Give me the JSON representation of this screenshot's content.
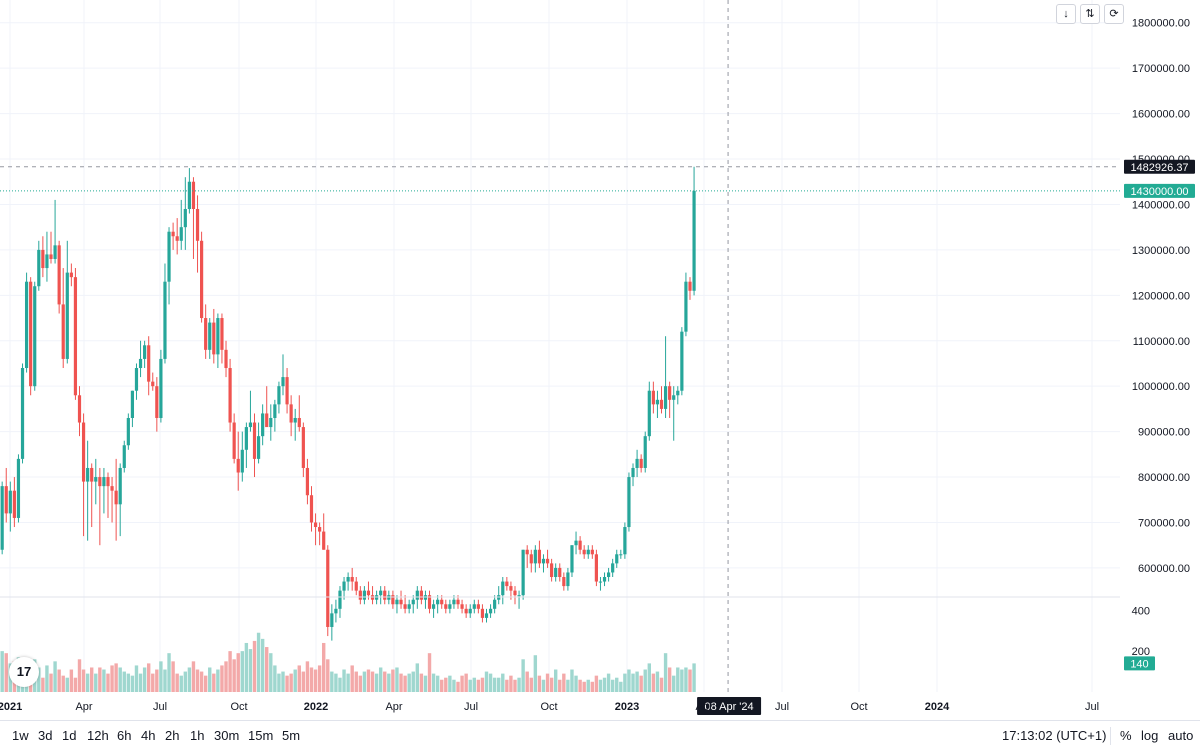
{
  "toolbar": {
    "timeframes": [
      "1w",
      "3d",
      "1d",
      "12h",
      "6h",
      "4h",
      "2h",
      "1h",
      "30m",
      "15m",
      "5m"
    ],
    "clock": "17:13:02 (UTC+1)",
    "percent_label": "%",
    "log_label": "log",
    "auto_label": "auto"
  },
  "controls": {
    "down_icon": "arrow-down-icon",
    "collapse_icon": "collapse-icon",
    "reset_icon": "reset-scale-icon"
  },
  "logo": {
    "text": "17"
  },
  "crosshair": {
    "price_label": "1482926.37",
    "date_label": "08 Apr '24"
  },
  "colors": {
    "up": "#26a69a",
    "down": "#ef5350",
    "up_vol": "#9fd7cf",
    "down_vol": "#f3a9a9",
    "grid": "#f0f3fa",
    "crosshair": "#9598a1",
    "last_price": "#22ab94",
    "label_dark": "#131722"
  },
  "chart_data": {
    "type": "candlestick",
    "timeframe": "1w",
    "price_axis": {
      "ticks": [
        "600000.00",
        "700000.00",
        "800000.00",
        "900000.00",
        "1000000.00",
        "1100000.00",
        "1200000.00",
        "1300000.00",
        "1400000.00",
        "1500000.00",
        "1600000.00",
        "1700000.00",
        "1800000.00"
      ],
      "last_price_label": "1430000.00",
      "range": [
        536000,
        1850000
      ]
    },
    "volume_axis": {
      "ticks": [
        "200",
        "400"
      ],
      "last_volume_label": "140",
      "range": [
        0,
        460
      ]
    },
    "time_axis": [
      "2021",
      "Apr",
      "Jul",
      "Oct",
      "2022",
      "Apr",
      "Jul",
      "Oct",
      "2023",
      "Apr",
      "Jul",
      "Oct",
      "2024",
      "Jul"
    ],
    "candles": [
      [
        590000,
        650000,
        560000,
        640000,
        80
      ],
      [
        640000,
        790000,
        630000,
        780000,
        200
      ],
      [
        780000,
        820000,
        700000,
        720000,
        190
      ],
      [
        720000,
        790000,
        680000,
        770000,
        140
      ],
      [
        770000,
        800000,
        690000,
        710000,
        150
      ],
      [
        710000,
        850000,
        700000,
        840000,
        170
      ],
      [
        840000,
        1050000,
        830000,
        1040000,
        110
      ],
      [
        1040000,
        1250000,
        1030000,
        1230000,
        90
      ],
      [
        1230000,
        1240000,
        980000,
        1000000,
        100
      ],
      [
        1000000,
        1230000,
        990000,
        1220000,
        160
      ],
      [
        1220000,
        1320000,
        1210000,
        1300000,
        120
      ],
      [
        1300000,
        1330000,
        1240000,
        1260000,
        70
      ],
      [
        1260000,
        1340000,
        1230000,
        1290000,
        130
      ],
      [
        1290000,
        1340000,
        1270000,
        1280000,
        90
      ],
      [
        1280000,
        1410000,
        1270000,
        1310000,
        150
      ],
      [
        1310000,
        1320000,
        1160000,
        1180000,
        110
      ],
      [
        1180000,
        1260000,
        1040000,
        1060000,
        80
      ],
      [
        1060000,
        1320000,
        1050000,
        1250000,
        70
      ],
      [
        1250000,
        1270000,
        1220000,
        1240000,
        110
      ],
      [
        1240000,
        1260000,
        970000,
        980000,
        70
      ],
      [
        980000,
        1000000,
        890000,
        920000,
        160
      ],
      [
        920000,
        940000,
        670000,
        790000,
        110
      ],
      [
        790000,
        880000,
        660000,
        820000,
        90
      ],
      [
        820000,
        830000,
        690000,
        790000,
        120
      ],
      [
        790000,
        840000,
        740000,
        800000,
        90
      ],
      [
        800000,
        820000,
        650000,
        780000,
        120
      ],
      [
        780000,
        820000,
        720000,
        800000,
        110
      ],
      [
        800000,
        810000,
        710000,
        780000,
        90
      ],
      [
        780000,
        800000,
        700000,
        770000,
        130
      ],
      [
        770000,
        840000,
        660000,
        740000,
        140
      ],
      [
        740000,
        830000,
        670000,
        820000,
        120
      ],
      [
        820000,
        880000,
        810000,
        870000,
        100
      ],
      [
        870000,
        940000,
        860000,
        930000,
        90
      ],
      [
        930000,
        990000,
        910000,
        990000,
        80
      ],
      [
        990000,
        1050000,
        970000,
        1040000,
        130
      ],
      [
        1040000,
        1100000,
        1020000,
        1060000,
        90
      ],
      [
        1060000,
        1100000,
        1040000,
        1090000,
        120
      ],
      [
        1090000,
        1110000,
        980000,
        1010000,
        140
      ],
      [
        1010000,
        1030000,
        990000,
        1000000,
        90
      ],
      [
        1000000,
        1020000,
        900000,
        930000,
        110
      ],
      [
        930000,
        1080000,
        920000,
        1060000,
        150
      ],
      [
        1060000,
        1270000,
        1050000,
        1230000,
        110
      ],
      [
        1230000,
        1350000,
        1180000,
        1340000,
        190
      ],
      [
        1340000,
        1360000,
        1300000,
        1330000,
        150
      ],
      [
        1330000,
        1370000,
        1290000,
        1320000,
        90
      ],
      [
        1320000,
        1410000,
        1300000,
        1350000,
        80
      ],
      [
        1350000,
        1460000,
        1300000,
        1390000,
        100
      ],
      [
        1390000,
        1480000,
        1380000,
        1450000,
        120
      ],
      [
        1450000,
        1460000,
        1280000,
        1390000,
        150
      ],
      [
        1390000,
        1420000,
        1250000,
        1320000,
        110
      ],
      [
        1320000,
        1340000,
        1140000,
        1150000,
        100
      ],
      [
        1150000,
        1180000,
        1060000,
        1080000,
        80
      ],
      [
        1080000,
        1150000,
        1060000,
        1140000,
        120
      ],
      [
        1140000,
        1170000,
        1050000,
        1070000,
        90
      ],
      [
        1070000,
        1160000,
        1040000,
        1150000,
        110
      ],
      [
        1150000,
        1160000,
        1050000,
        1080000,
        130
      ],
      [
        1080000,
        1100000,
        1020000,
        1040000,
        150
      ],
      [
        1040000,
        1060000,
        900000,
        920000,
        200
      ],
      [
        920000,
        940000,
        830000,
        840000,
        160
      ],
      [
        840000,
        900000,
        770000,
        810000,
        190
      ],
      [
        810000,
        900000,
        790000,
        860000,
        200
      ],
      [
        860000,
        920000,
        820000,
        910000,
        240
      ],
      [
        910000,
        990000,
        900000,
        920000,
        210
      ],
      [
        920000,
        940000,
        800000,
        840000,
        250
      ],
      [
        840000,
        920000,
        830000,
        890000,
        290
      ],
      [
        890000,
        960000,
        870000,
        940000,
        260
      ],
      [
        940000,
        1000000,
        920000,
        910000,
        220
      ],
      [
        910000,
        960000,
        880000,
        930000,
        190
      ],
      [
        930000,
        970000,
        900000,
        960000,
        130
      ],
      [
        960000,
        1010000,
        940000,
        1000000,
        90
      ],
      [
        1000000,
        1070000,
        980000,
        1020000,
        100
      ],
      [
        1020000,
        1040000,
        940000,
        960000,
        80
      ],
      [
        960000,
        980000,
        890000,
        920000,
        90
      ],
      [
        920000,
        950000,
        880000,
        930000,
        110
      ],
      [
        930000,
        980000,
        900000,
        910000,
        130
      ],
      [
        910000,
        920000,
        800000,
        820000,
        100
      ],
      [
        820000,
        840000,
        740000,
        760000,
        150
      ],
      [
        760000,
        780000,
        680000,
        700000,
        120
      ],
      [
        700000,
        720000,
        650000,
        690000,
        110
      ],
      [
        690000,
        700000,
        650000,
        680000,
        130
      ],
      [
        680000,
        720000,
        640000,
        640000,
        240
      ],
      [
        640000,
        650000,
        450000,
        470000,
        160
      ],
      [
        470000,
        520000,
        440000,
        500000,
        100
      ],
      [
        500000,
        530000,
        480000,
        510000,
        90
      ],
      [
        510000,
        560000,
        490000,
        550000,
        70
      ],
      [
        550000,
        580000,
        530000,
        570000,
        110
      ],
      [
        570000,
        590000,
        550000,
        580000,
        90
      ],
      [
        580000,
        600000,
        550000,
        570000,
        130
      ],
      [
        570000,
        580000,
        540000,
        550000,
        100
      ],
      [
        550000,
        560000,
        520000,
        530000,
        80
      ],
      [
        530000,
        560000,
        520000,
        550000,
        100
      ],
      [
        550000,
        570000,
        530000,
        540000,
        110
      ],
      [
        540000,
        560000,
        520000,
        530000,
        100
      ],
      [
        530000,
        550000,
        520000,
        540000,
        90
      ],
      [
        540000,
        560000,
        520000,
        550000,
        120
      ],
      [
        550000,
        560000,
        520000,
        530000,
        100
      ],
      [
        530000,
        550000,
        520000,
        540000,
        90
      ],
      [
        540000,
        550000,
        510000,
        520000,
        110
      ],
      [
        520000,
        540000,
        500000,
        530000,
        120
      ],
      [
        530000,
        550000,
        510000,
        520000,
        90
      ],
      [
        520000,
        540000,
        500000,
        510000,
        80
      ],
      [
        510000,
        530000,
        500000,
        520000,
        90
      ],
      [
        520000,
        540000,
        500000,
        530000,
        100
      ],
      [
        530000,
        560000,
        510000,
        550000,
        140
      ],
      [
        550000,
        560000,
        520000,
        530000,
        90
      ],
      [
        530000,
        550000,
        510000,
        540000,
        80
      ],
      [
        540000,
        550000,
        500000,
        510000,
        190
      ],
      [
        510000,
        530000,
        490000,
        520000,
        90
      ],
      [
        520000,
        540000,
        500000,
        530000,
        80
      ],
      [
        530000,
        540000,
        510000,
        520000,
        60
      ],
      [
        520000,
        530000,
        500000,
        510000,
        70
      ],
      [
        510000,
        530000,
        500000,
        520000,
        80
      ],
      [
        520000,
        540000,
        510000,
        530000,
        60
      ],
      [
        530000,
        540000,
        510000,
        520000,
        50
      ],
      [
        520000,
        530000,
        500000,
        510000,
        80
      ],
      [
        510000,
        520000,
        490000,
        500000,
        90
      ],
      [
        500000,
        520000,
        490000,
        510000,
        60
      ],
      [
        510000,
        530000,
        500000,
        520000,
        70
      ],
      [
        520000,
        530000,
        500000,
        510000,
        60
      ],
      [
        510000,
        520000,
        480000,
        490000,
        70
      ],
      [
        490000,
        510000,
        480000,
        500000,
        100
      ],
      [
        500000,
        520000,
        490000,
        510000,
        90
      ],
      [
        510000,
        540000,
        500000,
        530000,
        70
      ],
      [
        530000,
        560000,
        520000,
        540000,
        70
      ],
      [
        540000,
        580000,
        520000,
        570000,
        90
      ],
      [
        570000,
        580000,
        550000,
        560000,
        60
      ],
      [
        560000,
        570000,
        530000,
        550000,
        80
      ],
      [
        550000,
        560000,
        520000,
        540000,
        60
      ],
      [
        540000,
        550000,
        510000,
        540000,
        70
      ],
      [
        540000,
        640000,
        530000,
        640000,
        160
      ],
      [
        640000,
        650000,
        600000,
        630000,
        100
      ],
      [
        630000,
        640000,
        590000,
        610000,
        70
      ],
      [
        610000,
        650000,
        590000,
        640000,
        180
      ],
      [
        640000,
        660000,
        600000,
        610000,
        80
      ],
      [
        610000,
        630000,
        590000,
        620000,
        60
      ],
      [
        620000,
        640000,
        600000,
        610000,
        90
      ],
      [
        610000,
        620000,
        570000,
        580000,
        70
      ],
      [
        580000,
        610000,
        570000,
        600000,
        110
      ],
      [
        600000,
        610000,
        570000,
        580000,
        60
      ],
      [
        580000,
        590000,
        550000,
        560000,
        90
      ],
      [
        560000,
        600000,
        550000,
        590000,
        60
      ],
      [
        590000,
        650000,
        580000,
        650000,
        110
      ],
      [
        650000,
        680000,
        630000,
        660000,
        80
      ],
      [
        660000,
        670000,
        630000,
        640000,
        60
      ],
      [
        640000,
        650000,
        620000,
        630000,
        50
      ],
      [
        630000,
        650000,
        620000,
        640000,
        60
      ],
      [
        640000,
        650000,
        620000,
        630000,
        50
      ],
      [
        630000,
        640000,
        560000,
        570000,
        80
      ],
      [
        570000,
        580000,
        550000,
        570000,
        60
      ],
      [
        570000,
        590000,
        560000,
        580000,
        70
      ],
      [
        580000,
        600000,
        570000,
        590000,
        90
      ],
      [
        590000,
        620000,
        580000,
        610000,
        60
      ],
      [
        610000,
        640000,
        600000,
        630000,
        70
      ],
      [
        630000,
        640000,
        620000,
        630000,
        50
      ],
      [
        630000,
        700000,
        620000,
        690000,
        90
      ],
      [
        690000,
        810000,
        680000,
        800000,
        110
      ],
      [
        800000,
        830000,
        780000,
        820000,
        90
      ],
      [
        820000,
        860000,
        800000,
        840000,
        100
      ],
      [
        840000,
        850000,
        810000,
        820000,
        80
      ],
      [
        820000,
        900000,
        810000,
        890000,
        110
      ],
      [
        890000,
        1010000,
        880000,
        990000,
        140
      ],
      [
        990000,
        1010000,
        940000,
        960000,
        90
      ],
      [
        960000,
        990000,
        930000,
        970000,
        100
      ],
      [
        970000,
        1000000,
        940000,
        950000,
        70
      ],
      [
        950000,
        1110000,
        930000,
        1000000,
        190
      ],
      [
        1000000,
        1010000,
        930000,
        970000,
        120
      ],
      [
        970000,
        1000000,
        880000,
        980000,
        80
      ],
      [
        980000,
        1000000,
        960000,
        990000,
        120
      ],
      [
        990000,
        1130000,
        980000,
        1120000,
        110
      ],
      [
        1120000,
        1250000,
        1110000,
        1230000,
        120
      ],
      [
        1230000,
        1240000,
        1190000,
        1210000,
        110
      ],
      [
        1210000,
        1482926.37,
        1200000,
        1430000,
        140
      ]
    ]
  }
}
